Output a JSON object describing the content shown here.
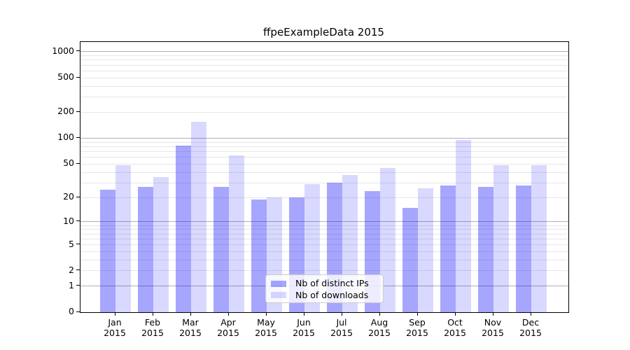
{
  "title": "ffpeExampleData 2015",
  "colors": {
    "ips_bar": "rgba(0,0,255,0.35)",
    "downloads_bar": "rgba(0,0,255,0.15)",
    "grid_major": "#b0b0b0",
    "grid_minor": "#e7e7e7",
    "spine": "#000000",
    "text": "#000000",
    "legend_bg": "rgba(255,255,255,0.8)",
    "legend_border": "#cccccc"
  },
  "legend": {
    "items": [
      {
        "label": "Nb of distinct IPs",
        "color_key": "ips_bar"
      },
      {
        "label": "Nb of downloads",
        "color_key": "downloads_bar"
      }
    ]
  },
  "chart_data": {
    "type": "bar",
    "title": "ffpeExampleData 2015",
    "categories": [
      "Jan 2015",
      "Feb 2015",
      "Mar 2015",
      "Apr 2015",
      "May 2015",
      "Jun 2015",
      "Jul 2015",
      "Aug 2015",
      "Sep 2015",
      "Oct 2015",
      "Nov 2015",
      "Dec 2015"
    ],
    "series": [
      {
        "name": "Nb of distinct IPs",
        "values": [
          25,
          27,
          82,
          27,
          19,
          20,
          30,
          24,
          15,
          28,
          27,
          28
        ]
      },
      {
        "name": "Nb of downloads",
        "values": [
          48,
          35,
          155,
          63,
          20,
          29,
          37,
          45,
          26,
          95,
          48,
          48
        ]
      }
    ],
    "xlabel": "",
    "ylabel": "",
    "yscale": "log1p",
    "yticks": [
      0,
      1,
      2,
      5,
      10,
      20,
      50,
      100,
      200,
      500,
      1000
    ],
    "ylim": [
      0,
      1348
    ],
    "grid": "both",
    "legend_position": "lower center"
  }
}
